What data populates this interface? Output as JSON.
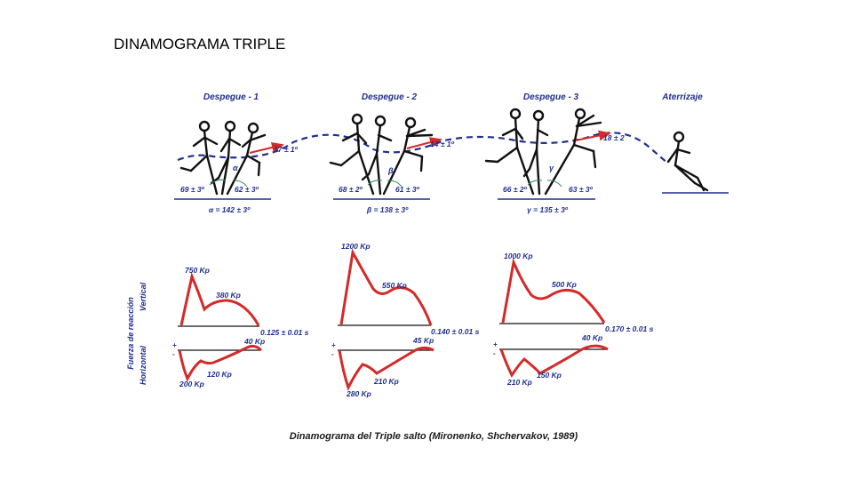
{
  "slide": {
    "title": "DINAMOGRAMA TRIPLE"
  },
  "figure": {
    "caption": "Dinamograma del Triple salto (Mironenko, Shchervakov, 1989)",
    "axis_label": "Fuerza de reacción",
    "vertical_label": "Vertical",
    "horizontal_label": "Horizontal",
    "plus_sign": "+",
    "minus_sign": "-",
    "colors": {
      "curve": "#d42a2a",
      "text": "#1f2f8f",
      "figure": "#111111",
      "trajectory": "#1f2f8f"
    },
    "phases": [
      {
        "title": "Despegue - 1",
        "takeoff_angle": "17 ± 1º",
        "left_angle": "69 ± 3º",
        "right_angle": "62 ± 3º",
        "sum_label": "α = 142 ± 3º",
        "angle_symbol": "α",
        "vertical_peak": "750 Kp",
        "vertical_second": "380 Kp",
        "time": "0.125 ± 0.01 s",
        "horizontal_neg": "200 Kp",
        "horizontal_second": "120 Kp",
        "horizontal_pos": "40 Kp"
      },
      {
        "title": "Despegue - 2",
        "takeoff_angle": "14 ± 1º",
        "left_angle": "68 ± 2º",
        "right_angle": "61 ± 3º",
        "sum_label": "β = 138 ± 3º",
        "angle_symbol": "β",
        "vertical_peak": "1200 Kp",
        "vertical_second": "550 Kp",
        "time": "0.140 ± 0.01 s",
        "horizontal_neg": "280 Kp",
        "horizontal_second": "210 Kp",
        "horizontal_pos": "45 Kp"
      },
      {
        "title": "Despegue - 3",
        "takeoff_angle": "18 ± 2",
        "left_angle": "66 ± 2º",
        "right_angle": "63 ± 3º",
        "sum_label": "γ = 135 ± 3º",
        "angle_symbol": "γ",
        "vertical_peak": "1000 Kp",
        "vertical_second": "500 Kp",
        "time": "0.170 ± 0.01 s",
        "horizontal_neg": "210 Kp",
        "horizontal_second": "150 Kp",
        "horizontal_pos": "40 Kp"
      }
    ],
    "landing_title": "Aterrizaje"
  }
}
